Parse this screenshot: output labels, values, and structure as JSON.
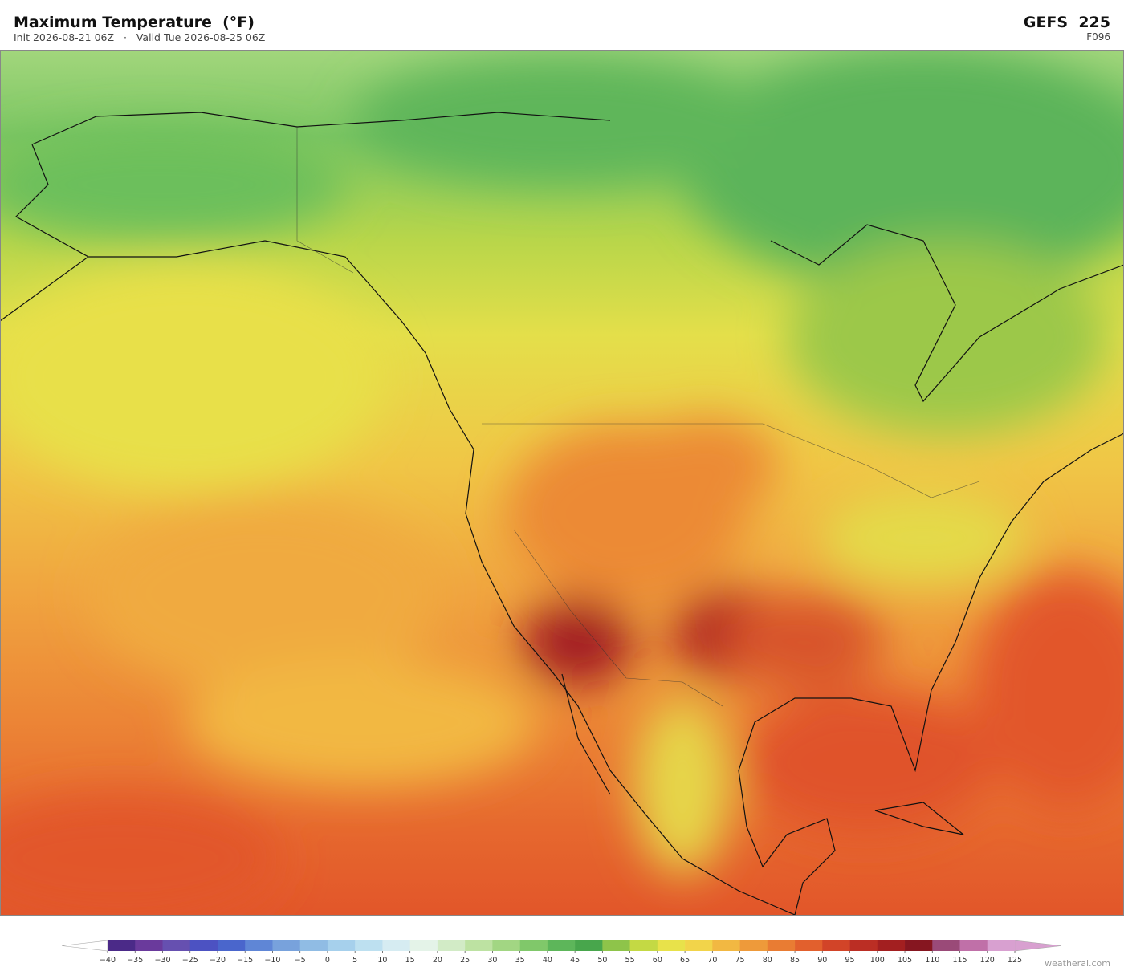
{
  "header": {
    "title": "Maximum Temperature  (°F)",
    "subtitle": "Init 2026-08-21 06Z   ·   Valid Tue 2026-08-25 06Z",
    "model": "GEFS  225",
    "forecast_hour": "F096"
  },
  "colorbar": {
    "ticks": [
      {
        "value": -40,
        "label": "−40"
      },
      {
        "value": -35,
        "label": "−35"
      },
      {
        "value": -30,
        "label": "−30"
      },
      {
        "value": -25,
        "label": "−25"
      },
      {
        "value": -20,
        "label": "−20"
      },
      {
        "value": -15,
        "label": "−15"
      },
      {
        "value": -10,
        "label": "−10"
      },
      {
        "value": -5,
        "label": "−5"
      },
      0,
      5,
      10,
      15,
      20,
      25,
      30,
      35,
      40,
      45,
      50,
      55,
      60,
      65,
      70,
      75,
      80,
      85,
      90,
      95,
      100,
      105,
      110,
      115,
      120,
      125
    ],
    "colors": [
      "#4b2a88",
      "#6a3a9c",
      "#6650b0",
      "#4c52c2",
      "#4a66cc",
      "#5f86d6",
      "#78a2dc",
      "#90bce4",
      "#a6d0ec",
      "#bde0f0",
      "#d6ecf2",
      "#e4f3e8",
      "#d2ebc6",
      "#bde2a2",
      "#a2d683",
      "#80c86a",
      "#5db65a",
      "#48a64c",
      "#8ec44a",
      "#c4d944",
      "#e8e24a",
      "#f2d44a",
      "#f2b842",
      "#ee9a3a",
      "#e97c33",
      "#e2602d",
      "#d24428",
      "#bb2e24",
      "#a31f20",
      "#861620",
      "#9a4a78",
      "#c070a8",
      "#d8a0d0"
    ],
    "under_color": "#ffffff",
    "over_color": "#d8a0d0"
  },
  "footer": {
    "watermark": "weatherai.com"
  }
}
